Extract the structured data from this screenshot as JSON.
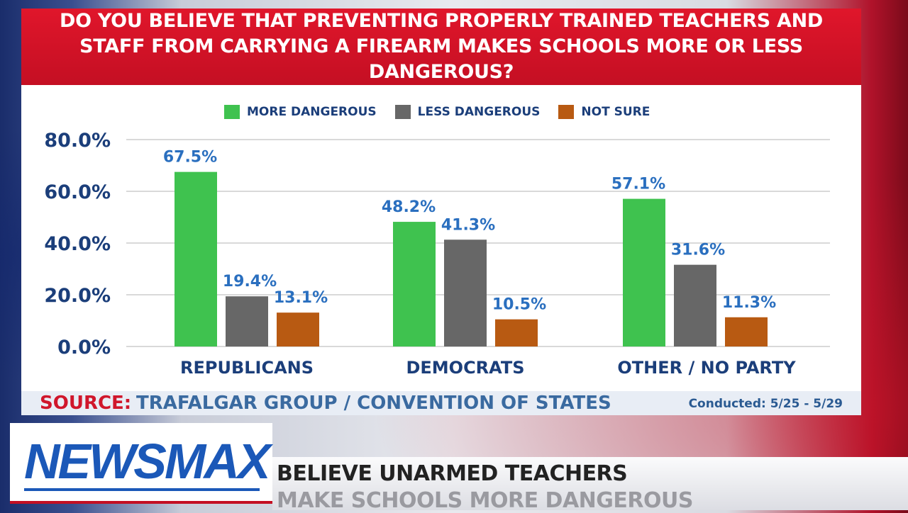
{
  "title": "DO YOU BELIEVE THAT PREVENTING PROPERLY TRAINED TEACHERS AND STAFF FROM CARRYING A FIREARM MAKES SCHOOLS MORE OR LESS DANGEROUS?",
  "source": {
    "label": "SOURCE:",
    "text": "TRAFALGAR GROUP / CONVENTION OF STATES",
    "conducted": "Conducted: 5/25 - 5/29"
  },
  "branding": {
    "logo": "NEWSMAX",
    "ticker_line1": "BELIEVE UNARMED TEACHERS",
    "ticker_line2": "MAKE SCHOOLS MORE DANGEROUS"
  },
  "colors": {
    "more": "#3fc24f",
    "less": "#676767",
    "not_sure": "#b85a12",
    "value_label": "#2a6fbf",
    "title_bg": "#d8142a"
  },
  "chart_data": {
    "type": "bar",
    "title": "DO YOU BELIEVE THAT PREVENTING PROPERLY TRAINED TEACHERS AND STAFF FROM CARRYING A FIREARM MAKES SCHOOLS MORE OR LESS DANGEROUS?",
    "categories": [
      "REPUBLICANS",
      "DEMOCRATS",
      "OTHER / NO PARTY"
    ],
    "series": [
      {
        "name": "MORE DANGEROUS",
        "values": [
          67.5,
          48.2,
          57.1
        ],
        "labels": [
          "67.5%",
          "48.2%",
          "57.1%"
        ]
      },
      {
        "name": "LESS DANGEROUS",
        "values": [
          19.4,
          41.3,
          31.6
        ],
        "labels": [
          "19.4%",
          "41.3%",
          "31.6%"
        ]
      },
      {
        "name": "NOT SURE",
        "values": [
          13.1,
          10.5,
          11.3
        ],
        "labels": [
          "13.1%",
          "10.5%",
          "11.3%"
        ]
      }
    ],
    "y_ticks": [
      "0.0%",
      "20.0%",
      "40.0%",
      "60.0%",
      "80.0%"
    ],
    "y_tick_values": [
      0,
      20,
      40,
      60,
      80
    ],
    "ylim": [
      0,
      80
    ],
    "grid": true,
    "legend_position": "top-center"
  }
}
